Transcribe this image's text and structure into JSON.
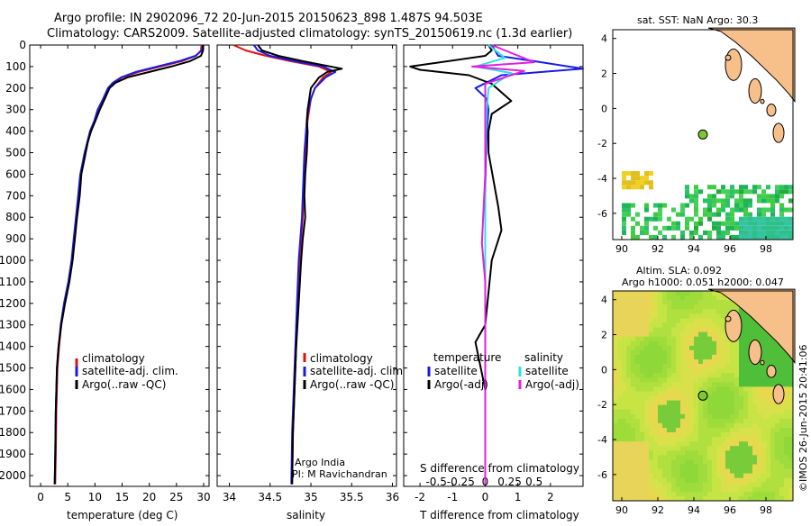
{
  "header": {
    "line1": "Argo profile: IN 2902096_72 20-Jun-2015 20150623_898 1.487S 94.503E",
    "line2": "Climatology: CARS2009. Satellite-adjusted climatology: synTS_20150619.nc (1.3d earlier)"
  },
  "colors": {
    "climatology": "#e01010",
    "satellite_adj": "#1a1ae6",
    "argo": "#000000",
    "sal_satellite": "#2ee0e0",
    "sal_argo": "#e020e0",
    "land": "#f7c08a",
    "marker": "#7cc832"
  },
  "credit": "©IMOS 26-Jun-2015 20:41:06",
  "chart_data": [
    {
      "type": "line",
      "xlabel": "temperature (deg C)",
      "ylabel": "",
      "xlim": [
        -2,
        31
      ],
      "ylim": [
        2050,
        0
      ],
      "xticks": [
        "0",
        "5",
        "10",
        "15",
        "20",
        "25",
        "30"
      ],
      "xtick_values": [
        0,
        5,
        10,
        15,
        20,
        25,
        30
      ],
      "yticks": [
        "0",
        "100",
        "200",
        "300",
        "400",
        "500",
        "600",
        "700",
        "800",
        "900",
        "1000",
        "1100",
        "1200",
        "1300",
        "1400",
        "1500",
        "1600",
        "1700",
        "1800",
        "1900",
        "2000"
      ],
      "ytick_values": [
        0,
        100,
        200,
        300,
        400,
        500,
        600,
        700,
        800,
        900,
        1000,
        1100,
        1200,
        1300,
        1400,
        1500,
        1600,
        1700,
        1800,
        1900,
        2000
      ],
      "legend": [
        "climatology",
        "satellite-adj. clim.",
        "Argo(..raw -QC)"
      ],
      "legend_position": "lower-right",
      "series": [
        {
          "name": "climatology",
          "color": "#e01010",
          "x": [
            29.6,
            29.5,
            28.6,
            26,
            22,
            18,
            15,
            13.5,
            12.5,
            11.6,
            10.6,
            10.0,
            9.2,
            8.7,
            8.2,
            7.8,
            7.4,
            7.0,
            6.6,
            6.2,
            5.8,
            5.2,
            4.4,
            3.8,
            3.4,
            3.1,
            2.9,
            2.8,
            2.7
          ],
          "y": [
            0,
            25,
            50,
            75,
            100,
            125,
            150,
            175,
            200,
            250,
            300,
            350,
            400,
            450,
            500,
            550,
            600,
            700,
            800,
            900,
            1000,
            1100,
            1200,
            1300,
            1400,
            1500,
            1700,
            1900,
            2040
          ]
        },
        {
          "name": "satellite-adj. clim.",
          "color": "#1a1ae6",
          "x": [
            29.8,
            29.7,
            28.5,
            25.5,
            21.5,
            17.5,
            14.8,
            13.3,
            12.4,
            11.5,
            10.5,
            9.9,
            9.1,
            8.6,
            8.1,
            7.7,
            7.3,
            6.9,
            6.5,
            6.1,
            5.7,
            5.1,
            4.3,
            3.7,
            3.3,
            3.0,
            2.8,
            2.7,
            2.6
          ],
          "y": [
            0,
            25,
            50,
            75,
            100,
            125,
            150,
            175,
            200,
            250,
            300,
            350,
            400,
            450,
            500,
            550,
            600,
            700,
            800,
            900,
            1000,
            1100,
            1200,
            1300,
            1400,
            1500,
            1700,
            1900,
            2040
          ]
        },
        {
          "name": "Argo(..raw -QC)",
          "color": "#000000",
          "x": [
            29.9,
            29.9,
            29.5,
            27.5,
            24,
            20,
            16,
            13.8,
            12.7,
            11.8,
            10.9,
            10.1,
            9.3,
            8.7,
            8.3,
            7.9,
            7.5,
            7.2,
            6.7,
            6.3,
            5.9,
            5.3,
            4.5,
            3.8,
            3.3,
            3.0,
            2.8,
            2.7,
            2.6
          ],
          "y": [
            0,
            25,
            50,
            75,
            100,
            125,
            150,
            175,
            200,
            250,
            300,
            350,
            400,
            450,
            500,
            550,
            600,
            700,
            800,
            900,
            1000,
            1100,
            1200,
            1300,
            1400,
            1500,
            1700,
            1900,
            2040
          ]
        }
      ]
    },
    {
      "type": "line",
      "xlabel": "salinity",
      "xlim": [
        33.85,
        36.05
      ],
      "ylim": [
        2050,
        0
      ],
      "xticks": [
        "34",
        "34.5",
        "35",
        "35.5",
        "36"
      ],
      "xtick_values": [
        34,
        34.5,
        35,
        35.5,
        36
      ],
      "legend": [
        "climatology",
        "satellite-adj. clim.",
        "Argo(..raw -QC)"
      ],
      "legend_position": "lower-right",
      "annotation": [
        "Argo India",
        "PI: M Ravichandran"
      ],
      "series": [
        {
          "name": "climatology",
          "color": "#e01010",
          "x": [
            34.05,
            34.2,
            34.45,
            34.75,
            35.1,
            35.25,
            35.15,
            35.05,
            35.0,
            34.98,
            34.96,
            34.95,
            34.93,
            34.92,
            34.91,
            34.9,
            34.88,
            34.86,
            34.84,
            34.82,
            34.8,
            34.78,
            34.77
          ],
          "y": [
            0,
            25,
            50,
            75,
            100,
            125,
            150,
            200,
            250,
            300,
            350,
            400,
            500,
            600,
            700,
            800,
            900,
            1000,
            1200,
            1400,
            1600,
            1800,
            2040
          ]
        },
        {
          "name": "satellite-adj. clim.",
          "color": "#1a1ae6",
          "x": [
            34.3,
            34.35,
            34.5,
            34.8,
            35.15,
            35.3,
            35.18,
            35.05,
            35.0,
            34.97,
            34.95,
            34.94,
            34.92,
            34.91,
            34.9,
            34.89,
            34.87,
            34.85,
            34.83,
            34.81,
            34.79,
            34.77,
            34.76
          ],
          "y": [
            0,
            25,
            50,
            75,
            100,
            125,
            150,
            200,
            250,
            300,
            350,
            400,
            500,
            600,
            700,
            800,
            900,
            1000,
            1200,
            1400,
            1600,
            1800,
            2040
          ]
        },
        {
          "name": "Argo(..raw -QC)",
          "color": "#000000",
          "x": [
            34.35,
            34.4,
            34.6,
            34.9,
            35.38,
            35.2,
            35.1,
            35.0,
            34.98,
            34.96,
            34.95,
            34.96,
            34.95,
            34.93,
            34.92,
            34.93,
            34.9,
            34.88,
            34.85,
            34.82,
            34.8,
            34.78,
            34.77
          ],
          "y": [
            0,
            25,
            50,
            75,
            110,
            125,
            150,
            200,
            250,
            300,
            350,
            400,
            500,
            600,
            700,
            800,
            900,
            1000,
            1200,
            1400,
            1600,
            1800,
            2040
          ]
        }
      ]
    },
    {
      "type": "line",
      "xlabel_top": "S difference from climatology",
      "xlabel": "T difference from climatology",
      "xlim": [
        -2.5,
        3.0
      ],
      "ylim": [
        2050,
        0
      ],
      "xticks_bottom": [
        "-2",
        "-1",
        "0",
        "1",
        "2"
      ],
      "xtick_values_bottom": [
        -2,
        -1,
        0,
        1,
        2
      ],
      "xticks_top": [
        "-0.5",
        "-0.25",
        "0",
        "0.25",
        "0.5"
      ],
      "xtick_values_top_scaled": [
        -1.5,
        -0.75,
        0,
        0.75,
        1.5
      ],
      "legend": [
        "temperature",
        "satellite",
        "Argo(-adj)",
        "salinity",
        "satellite",
        "Argo(-adj)"
      ],
      "legend_position": "lower-center",
      "series": [
        {
          "name": "satellite",
          "color": "#1a1ae6",
          "x": [
            0.2,
            0.3,
            0.4,
            1.5,
            3.0,
            0.5,
            -0.3,
            0.05,
            0.1,
            0.05,
            0.02,
            0.0,
            0.0,
            0.0,
            0.0,
            0.0,
            0.0
          ],
          "y": [
            0,
            25,
            50,
            75,
            110,
            140,
            200,
            250,
            300,
            400,
            500,
            700,
            900,
            1100,
            1400,
            1700,
            2040
          ]
        },
        {
          "name": "Argo(-adj)",
          "color": "#000000",
          "x": [
            0.1,
            0.2,
            0.0,
            -2.3,
            -2.0,
            -0.5,
            0.2,
            0.8,
            0.2,
            0.1,
            0.1,
            0.4,
            0.5,
            0.2,
            0.0,
            -0.3,
            0.0,
            0.0
          ],
          "y": [
            0,
            25,
            50,
            100,
            115,
            140,
            180,
            260,
            320,
            400,
            500,
            750,
            860,
            1000,
            1300,
            1380,
            1600,
            2040
          ]
        },
        {
          "name": "satellite",
          "color": "#2ee0e0",
          "x": [
            0.1,
            0.6,
            -0.3,
            0.8,
            0.1,
            0.05,
            0.0,
            0.0,
            0.0,
            0.0,
            0.0
          ],
          "y": [
            0,
            60,
            100,
            130,
            200,
            300,
            500,
            800,
            1100,
            1500,
            2040
          ]
        },
        {
          "name": "Argo(-adj)",
          "color": "#e020e0",
          "x": [
            0.2,
            1.5,
            -0.4,
            1.2,
            0.0,
            0.0,
            0.0,
            -0.1,
            0.0,
            0.0,
            0.0
          ],
          "y": [
            0,
            80,
            100,
            120,
            180,
            300,
            600,
            920,
            1100,
            1500,
            2040
          ]
        }
      ]
    }
  ],
  "maps": [
    {
      "title": "sat. SST: NaN Argo: 30.3",
      "xticks": [
        "90",
        "92",
        "94",
        "96",
        "98"
      ],
      "yticks": [
        "4",
        "2",
        "0",
        "-2",
        "-4",
        "-6"
      ],
      "xtick_values": [
        90,
        92,
        94,
        96,
        98
      ],
      "ytick_values": [
        4,
        2,
        0,
        -2,
        -4,
        -6
      ],
      "lon_range": [
        89.5,
        99.5
      ],
      "lat_range": [
        -7.5,
        4.5
      ],
      "marker_lon": 94.5,
      "marker_lat": -1.49
    },
    {
      "title_line1": "Altim. SLA: 0.092",
      "title_line2": "Argo h1000: 0.051 h2000: 0.047",
      "xticks": [
        "90",
        "92",
        "94",
        "96",
        "98"
      ],
      "yticks": [
        "4",
        "2",
        "0",
        "-2",
        "-4",
        "-6"
      ],
      "xtick_values": [
        90,
        92,
        94,
        96,
        98
      ],
      "ytick_values": [
        4,
        2,
        0,
        -2,
        -4,
        -6
      ],
      "lon_range": [
        89.5,
        99.5
      ],
      "lat_range": [
        -7.5,
        4.5
      ],
      "marker_lon": 94.5,
      "marker_lat": -1.49
    }
  ]
}
